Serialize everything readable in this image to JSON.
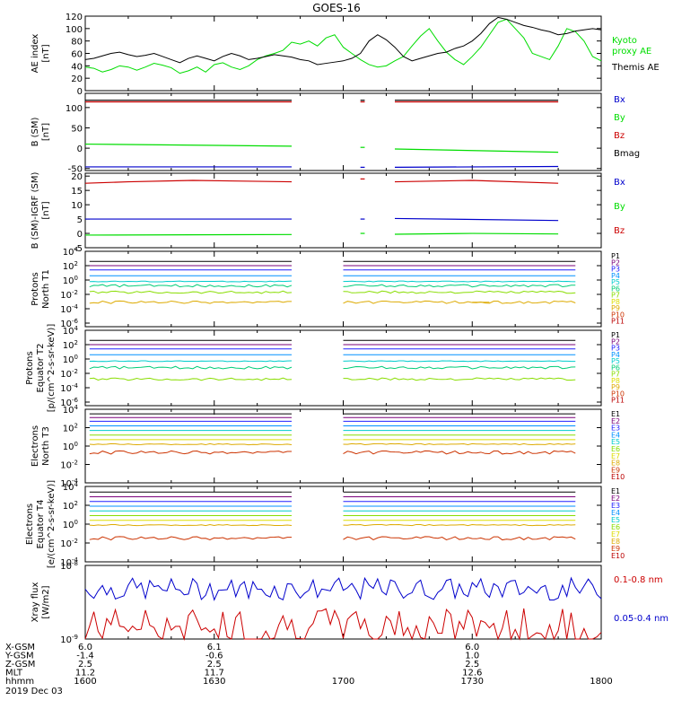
{
  "title": "GOES-16",
  "time_axis": {
    "tick_labels": [
      "1600",
      "1630",
      "1700",
      "1730",
      "1800"
    ],
    "hhmm_label": "hhmm",
    "date_label": "2019 Dec 03",
    "start_minutes": 960,
    "end_minutes": 1080
  },
  "ephemeris": {
    "labels": [
      "X-GSM",
      "Y-GSM",
      "Z-GSM",
      "MLT"
    ],
    "columns": [
      {
        "time": "1600",
        "values": [
          "6.0",
          "-1.4",
          "2.5",
          "11.2"
        ]
      },
      {
        "time": "1630",
        "values": [
          "6.1",
          "-0.6",
          "2.5",
          "11.7"
        ]
      },
      {
        "time": "1730",
        "values": [
          "6.0",
          "1.0",
          "2.5",
          "12.6"
        ]
      }
    ]
  },
  "colors": {
    "black": "#000000",
    "green": "#00dd00",
    "red": "#cc0000",
    "blue": "#0000cc",
    "ch": [
      "#000000",
      "#7a007a",
      "#2020ff",
      "#0090ff",
      "#00cccc",
      "#00cc77",
      "#88dd00",
      "#dddd00",
      "#ddaa00",
      "#cc3300",
      "#bb0000"
    ]
  },
  "chart_data": [
    {
      "id": "ae",
      "type": "line",
      "ylabel": "AE index\n[nT]",
      "ylim": [
        0,
        120
      ],
      "yticks": [
        "0",
        "20",
        "40",
        "60",
        "80",
        "100",
        "120"
      ],
      "legend": [
        "Kyoto\nproxy AE",
        "Themis AE"
      ],
      "series": [
        {
          "name": "Kyoto proxy AE",
          "color": "#00dd00",
          "x": [
            960,
            962,
            964,
            966,
            968,
            970,
            972,
            974,
            976,
            978,
            980,
            982,
            984,
            986,
            988,
            990,
            992,
            994,
            996,
            998,
            1000,
            1002,
            1004,
            1006,
            1008,
            1010,
            1012,
            1014,
            1016,
            1018,
            1020,
            1022,
            1024,
            1026,
            1028,
            1030,
            1032,
            1034,
            1036,
            1038,
            1040,
            1042,
            1044,
            1046,
            1048,
            1050,
            1052,
            1054,
            1056,
            1058,
            1060,
            1062,
            1064,
            1066,
            1068,
            1070,
            1072,
            1074,
            1076,
            1078,
            1080
          ],
          "y": [
            38,
            36,
            30,
            34,
            40,
            38,
            33,
            38,
            44,
            41,
            37,
            28,
            32,
            38,
            30,
            42,
            45,
            38,
            34,
            40,
            50,
            56,
            60,
            65,
            78,
            75,
            80,
            72,
            85,
            90,
            70,
            60,
            50,
            42,
            38,
            40,
            48,
            55,
            72,
            88,
            100,
            80,
            62,
            50,
            42,
            55,
            70,
            90,
            110,
            115,
            100,
            85,
            60,
            55,
            50,
            72,
            100,
            95,
            80,
            55,
            48
          ]
        },
        {
          "name": "Themis AE",
          "color": "#000000",
          "x": [
            960,
            962,
            964,
            966,
            968,
            970,
            972,
            974,
            976,
            978,
            980,
            982,
            984,
            986,
            988,
            990,
            992,
            994,
            996,
            998,
            1000,
            1002,
            1004,
            1006,
            1008,
            1010,
            1012,
            1014,
            1016,
            1018,
            1020,
            1022,
            1024,
            1026,
            1028,
            1030,
            1032,
            1034,
            1036,
            1038,
            1040,
            1042,
            1044,
            1046,
            1048,
            1050,
            1052,
            1054,
            1056,
            1058,
            1060,
            1062,
            1064,
            1066,
            1068,
            1070,
            1072,
            1074,
            1076,
            1078,
            1080
          ],
          "y": [
            50,
            52,
            56,
            60,
            62,
            58,
            55,
            57,
            60,
            55,
            50,
            45,
            52,
            56,
            52,
            48,
            55,
            60,
            56,
            50,
            52,
            55,
            58,
            56,
            54,
            50,
            48,
            42,
            44,
            46,
            48,
            52,
            60,
            80,
            90,
            82,
            70,
            55,
            48,
            52,
            56,
            60,
            62,
            68,
            72,
            80,
            92,
            108,
            118,
            115,
            110,
            105,
            102,
            98,
            95,
            90,
            92,
            96,
            98,
            100,
            98
          ]
        }
      ]
    },
    {
      "id": "bsm",
      "type": "line",
      "ylabel": "B (SM)\n[nT]",
      "ylim": [
        -55,
        135
      ],
      "yticks": [
        "-50",
        "0",
        "50",
        "100"
      ],
      "legend": [
        "Bx",
        "By",
        "Bz",
        "Bmag"
      ],
      "series": [
        {
          "name": "Bmag",
          "color": "#000000",
          "segments": [
            [
              [
                960,
                118
              ],
              [
                1008,
                118
              ]
            ],
            [
              [
                1024,
                118
              ],
              [
                1025,
                118
              ]
            ],
            [
              [
                1032,
                118
              ],
              [
                1070,
                118
              ]
            ]
          ]
        },
        {
          "name": "Bz",
          "color": "#cc0000",
          "segments": [
            [
              [
                960,
                114
              ],
              [
                1008,
                114
              ]
            ],
            [
              [
                1024,
                114
              ],
              [
                1025,
                114
              ]
            ],
            [
              [
                1032,
                114
              ],
              [
                1070,
                114
              ]
            ]
          ]
        },
        {
          "name": "By",
          "color": "#00dd00",
          "segments": [
            [
              [
                960,
                10
              ],
              [
                1008,
                5
              ]
            ],
            [
              [
                1024,
                2
              ],
              [
                1025,
                2
              ]
            ],
            [
              [
                1032,
                -2
              ],
              [
                1070,
                -10
              ]
            ]
          ]
        },
        {
          "name": "Bx",
          "color": "#0000cc",
          "segments": [
            [
              [
                960,
                -46
              ],
              [
                1008,
                -46
              ]
            ],
            [
              [
                1024,
                -47
              ],
              [
                1025,
                -47
              ]
            ],
            [
              [
                1032,
                -47
              ],
              [
                1070,
                -45
              ]
            ]
          ]
        }
      ]
    },
    {
      "id": "bdiff",
      "type": "line",
      "ylabel": "B (SM)-IGRF (SM)\n[nT]",
      "ylim": [
        -5,
        21
      ],
      "yticks": [
        "-5",
        "0",
        "5",
        "10",
        "15",
        "20"
      ],
      "legend": [
        "Bx",
        "By",
        "Bz"
      ],
      "series": [
        {
          "name": "Bz",
          "color": "#cc0000",
          "segments": [
            [
              [
                960,
                17.5
              ],
              [
                970,
                18
              ],
              [
                985,
                18.5
              ],
              [
                1008,
                18
              ]
            ],
            [
              [
                1024,
                19
              ],
              [
                1025,
                19
              ]
            ],
            [
              [
                1032,
                18
              ],
              [
                1050,
                18.5
              ],
              [
                1070,
                17.5
              ]
            ]
          ]
        },
        {
          "name": "Bx",
          "color": "#0000cc",
          "segments": [
            [
              [
                960,
                5
              ],
              [
                1008,
                5
              ]
            ],
            [
              [
                1024,
                5
              ],
              [
                1025,
                5
              ]
            ],
            [
              [
                1032,
                5.2
              ],
              [
                1070,
                4.5
              ]
            ]
          ]
        },
        {
          "name": "By",
          "color": "#00dd00",
          "segments": [
            [
              [
                960,
                -0.6
              ],
              [
                1008,
                -0.4
              ]
            ],
            [
              [
                1024,
                0
              ],
              [
                1025,
                0
              ]
            ],
            [
              [
                1032,
                -0.3
              ],
              [
                1050,
                0
              ],
              [
                1070,
                -0.2
              ]
            ]
          ]
        }
      ]
    },
    {
      "id": "p1",
      "type": "line",
      "ylabel": "Protons\nNorth T1",
      "ylim": [
        -6.5,
        4
      ],
      "log": true,
      "yticks": [
        "10^4",
        "10^2",
        "10^0",
        "10^-2",
        "10^-4",
        "10^-6"
      ],
      "legend": [
        "P1",
        "P2",
        "P3",
        "P4",
        "P5",
        "P6",
        "P7",
        "P8",
        "P9",
        "P10",
        "P11"
      ],
      "gap": [
        1008,
        1020
      ],
      "channels": [
        2.6,
        2.0,
        1.4,
        0.6,
        -0.2,
        -0.8,
        -1.7,
        -99,
        -3.1,
        -99,
        -99
      ],
      "partial": [
        {
          "ch": 8,
          "x": [
            1050,
            1054
          ]
        }
      ]
    },
    {
      "id": "p2",
      "type": "line",
      "ylabel": "Protons\nEquator T2\n[p/(cm^2-s-sr-keV)]",
      "ylim": [
        -6.5,
        4
      ],
      "log": true,
      "yticks": [
        "10^4",
        "10^2",
        "10^0",
        "10^-2",
        "10^-4",
        "10^-6"
      ],
      "legend": [
        "P1",
        "P2",
        "P3",
        "P4",
        "P5",
        "P6",
        "P7",
        "P8",
        "P9",
        "P10",
        "P11"
      ],
      "gap": [
        1008,
        1020
      ],
      "channels": [
        2.6,
        2.0,
        1.4,
        0.6,
        -0.3,
        -1.2,
        -2.8,
        -99,
        -99,
        -99,
        -99
      ],
      "partial": []
    },
    {
      "id": "e1",
      "type": "line",
      "ylabel": "Electrons\nNorth T3",
      "ylim": [
        -4,
        4
      ],
      "log": true,
      "yticks": [
        "10^4",
        "10^2",
        "10^0",
        "10^-2",
        "10^-4"
      ],
      "legend": [
        "E1",
        "E2",
        "E3",
        "E4",
        "E5",
        "E6",
        "E7",
        "E8",
        "E9",
        "E10"
      ],
      "gap": [
        1008,
        1020
      ],
      "channels": [
        3.5,
        3.1,
        2.7,
        2.2,
        1.7,
        1.2,
        0.7,
        0.2,
        -0.7,
        -99
      ],
      "partial": []
    },
    {
      "id": "e2",
      "type": "line",
      "ylabel": "Electrons\nEquator T4\n[e/(cm^2-s-sr-keV)]",
      "ylim": [
        -4,
        4
      ],
      "log": true,
      "yticks": [
        "10^4",
        "10^2",
        "10^0",
        "10^-2",
        "10^-4"
      ],
      "legend": [
        "E1",
        "E2",
        "E3",
        "E4",
        "E5",
        "E6",
        "E7",
        "E8",
        "E9",
        "E10"
      ],
      "gap": [
        1008,
        1020
      ],
      "channels": [
        3.4,
        2.9,
        2.4,
        1.9,
        1.4,
        0.9,
        0.4,
        -0.1,
        -1.5,
        -99
      ],
      "partial": []
    },
    {
      "id": "xray",
      "type": "line",
      "ylabel": "Xray flux\n[W/m2]",
      "ylim": [
        -9,
        -8
      ],
      "log": true,
      "yticks": [
        "10^-8",
        "10^-9"
      ],
      "legend": [
        "0.1-0.8 nm",
        "0.05-0.4 nm"
      ],
      "series": [
        {
          "name": "0.05-0.4 nm",
          "color": "#0000cc"
        },
        {
          "name": "0.1-0.8 nm",
          "color": "#cc0000"
        }
      ]
    }
  ]
}
